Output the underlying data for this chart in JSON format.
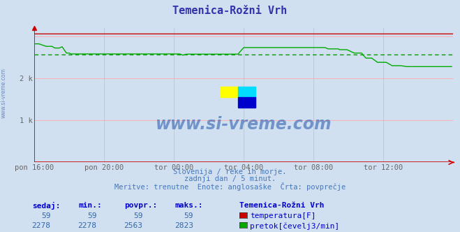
{
  "title": "Temenica-Rožni Vrh",
  "title_color": "#3333aa",
  "bg_color": "#d0e0f0",
  "plot_bg_color": "#d0e0f0",
  "grid_color": "#ffaaaa",
  "avg_line_color": "#009900",
  "temp_color": "#cc0000",
  "flow_color": "#00aa00",
  "x_tick_labels": [
    "pon 16:00",
    "pon 20:00",
    "tor 00:00",
    "tor 04:00",
    "tor 08:00",
    "tor 12:00"
  ],
  "ylim": [
    0,
    3200
  ],
  "xlim": [
    0,
    288
  ],
  "avg_flow": 2563,
  "watermark": "www.si-vreme.com",
  "watermark_color": "#2255aa",
  "info_line1": "Slovenija / reke in morje.",
  "info_line2": "zadnji dan / 5 minut.",
  "info_line3": "Meritve: trenutne  Enote: anglosaške  Črta: povprečje",
  "info_color": "#4477bb",
  "legend_title": "Temenica-Rožni Vrh",
  "label_sedaj": "sedaj:",
  "label_min": "min.:",
  "label_povpr": "povpr.:",
  "label_maks": "maks.:",
  "temp_sedaj": 59,
  "temp_min": 59,
  "temp_povpr": 59,
  "temp_maks": 59,
  "flow_sedaj": 2278,
  "flow_min": 2278,
  "flow_povpr": 2563,
  "flow_maks": 2823,
  "label_color": "#0000cc",
  "value_color": "#3366aa",
  "temp_label": "temperatura[F]",
  "flow_label": "pretok[čevelj3/min]",
  "axis_color": "#cc0000",
  "sidewatermark_color": "#5577aa"
}
